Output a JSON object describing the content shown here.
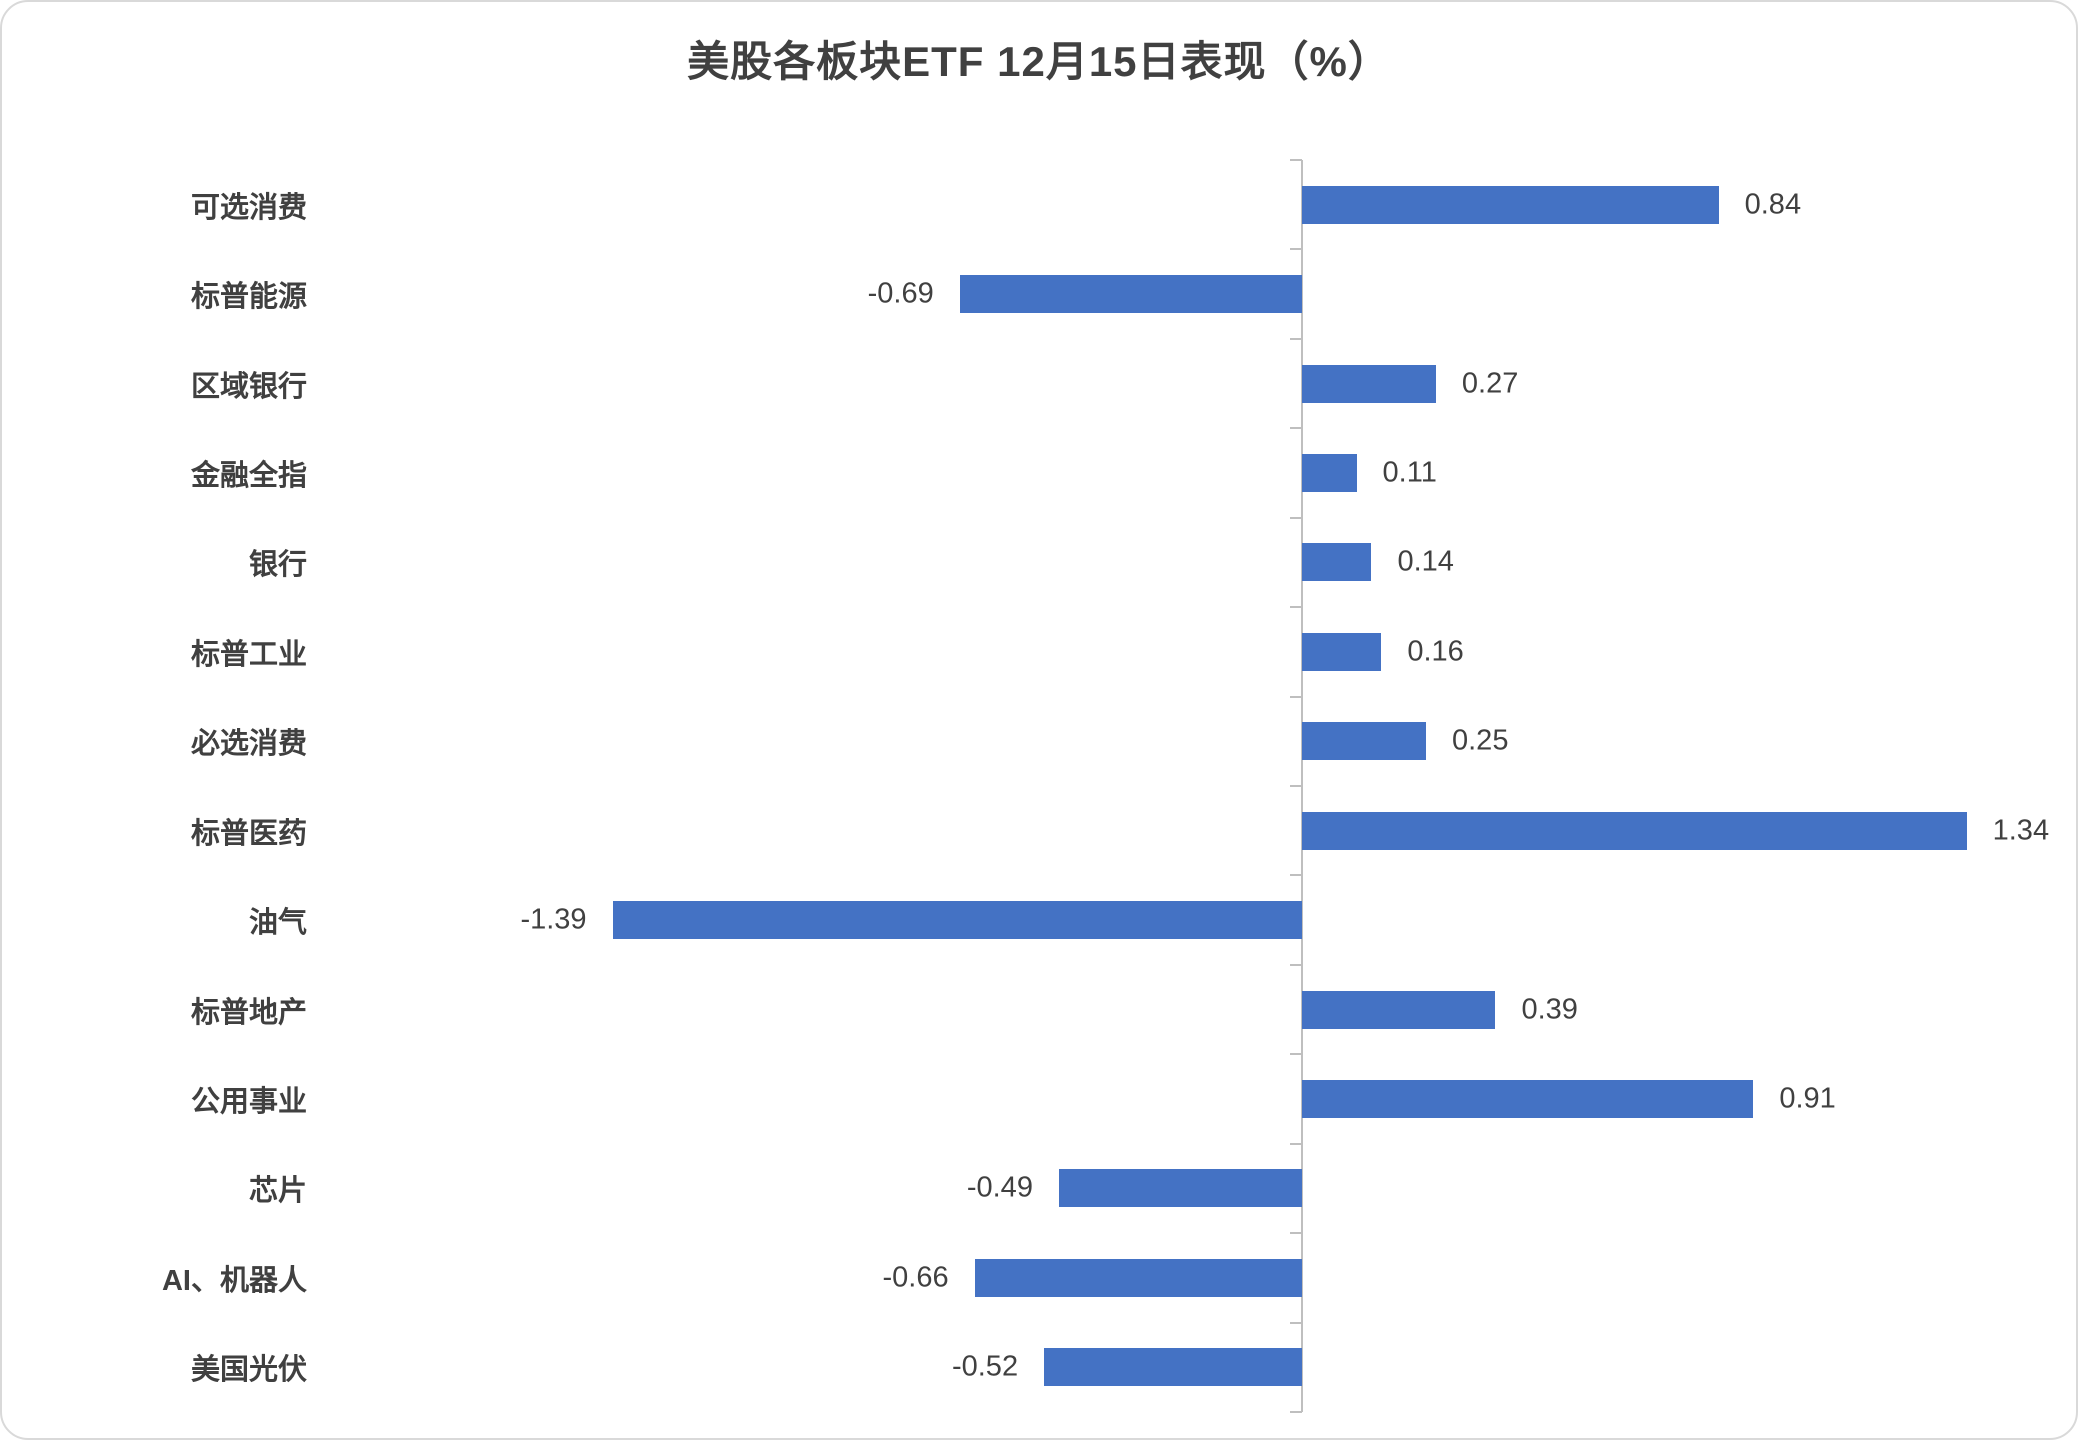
{
  "chart_data": {
    "type": "bar",
    "orientation": "horizontal",
    "title": "美股各板块ETF 12月15日表现（%）",
    "categories": [
      "可选消费",
      "标普能源",
      "区域银行",
      "金融全指",
      "银行",
      "标普工业",
      "必选消费",
      "标普医药",
      "油气",
      "标普地产",
      "公用事业",
      "芯片",
      "AI、机器人",
      "美国光伏"
    ],
    "values": [
      0.84,
      -0.69,
      0.27,
      0.11,
      0.14,
      0.16,
      0.25,
      1.34,
      -1.39,
      0.39,
      0.91,
      -0.49,
      -0.66,
      -0.52
    ],
    "value_labels": [
      "0.84",
      "-0.69",
      "0.27",
      "0.11",
      "0.14",
      "0.16",
      "0.25",
      "1.34",
      "-1.39",
      "0.39",
      "0.91",
      "-0.49",
      "-0.66",
      "-0.52"
    ],
    "xlim": [
      -1.6,
      1.6
    ],
    "grid": false,
    "legend": false,
    "bar_color": "#4472c4",
    "axis_color": "#bfbfbf",
    "text_color": "#404040"
  }
}
